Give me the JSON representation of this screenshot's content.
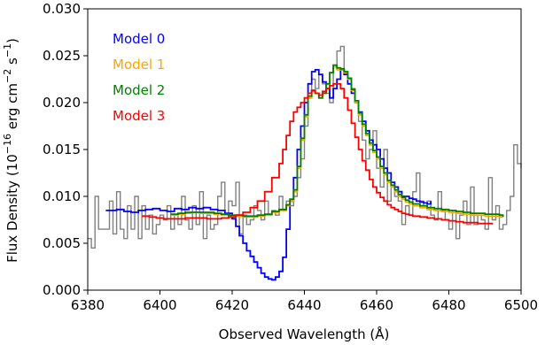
{
  "chart_data": {
    "type": "line",
    "xlabel": "Observed Wavelength (Å)",
    "ylabel": {
      "prefix": "Flux Density (10",
      "exp1": "−16",
      "mid": " erg cm",
      "exp2": "−2",
      "mid2": " s",
      "exp3": "−1",
      "suffix": ")"
    },
    "xlim": [
      6380,
      6500
    ],
    "ylim": [
      0.0,
      0.03
    ],
    "xticks": [
      6380,
      6400,
      6420,
      6440,
      6460,
      6480,
      6500
    ],
    "xtick_labels": [
      "6380",
      "6400",
      "6420",
      "6440",
      "6460",
      "6480",
      "6500"
    ],
    "yticks": [
      0.0,
      0.005,
      0.01,
      0.015,
      0.02,
      0.025,
      0.03
    ],
    "ytick_labels": [
      "0.000",
      "0.005",
      "0.010",
      "0.015",
      "0.020",
      "0.025",
      "0.030"
    ],
    "grid": false,
    "legend_placement": "top-left",
    "step": true,
    "data_color": "#808080",
    "data_x": [
      6380,
      6381,
      6382,
      6383,
      6384,
      6385,
      6386,
      6387,
      6388,
      6389,
      6390,
      6391,
      6392,
      6393,
      6394,
      6395,
      6396,
      6397,
      6398,
      6399,
      6400,
      6401,
      6402,
      6403,
      6404,
      6405,
      6406,
      6407,
      6408,
      6409,
      6410,
      6411,
      6412,
      6413,
      6414,
      6415,
      6416,
      6417,
      6418,
      6419,
      6420,
      6421,
      6422,
      6423,
      6424,
      6425,
      6426,
      6427,
      6428,
      6429,
      6430,
      6431,
      6432,
      6433,
      6434,
      6435,
      6436,
      6437,
      6438,
      6439,
      6440,
      6441,
      6442,
      6443,
      6444,
      6445,
      6446,
      6447,
      6448,
      6449,
      6450,
      6451,
      6452,
      6453,
      6454,
      6455,
      6456,
      6457,
      6458,
      6459,
      6460,
      6461,
      6462,
      6463,
      6464,
      6465,
      6466,
      6467,
      6468,
      6469,
      6470,
      6471,
      6472,
      6473,
      6474,
      6475,
      6476,
      6477,
      6478,
      6479,
      6480,
      6481,
      6482,
      6483,
      6484,
      6485,
      6486,
      6487,
      6488,
      6489,
      6490,
      6491,
      6492,
      6493,
      6494,
      6495,
      6496,
      6497,
      6498,
      6499,
      6500
    ],
    "data_y": [
      0.0055,
      0.0045,
      0.01,
      0.0065,
      0.0065,
      0.0065,
      0.0095,
      0.006,
      0.0105,
      0.0065,
      0.0055,
      0.009,
      0.0065,
      0.01,
      0.0055,
      0.009,
      0.0065,
      0.008,
      0.006,
      0.007,
      0.008,
      0.0075,
      0.009,
      0.0065,
      0.008,
      0.007,
      0.01,
      0.0075,
      0.0065,
      0.009,
      0.007,
      0.0105,
      0.0055,
      0.008,
      0.0065,
      0.007,
      0.01,
      0.0115,
      0.008,
      0.0095,
      0.009,
      0.0115,
      0.006,
      0.008,
      0.007,
      0.0075,
      0.009,
      0.0085,
      0.0075,
      0.0095,
      0.008,
      0.0085,
      0.008,
      0.01,
      0.0085,
      0.0095,
      0.009,
      0.01,
      0.012,
      0.014,
      0.0175,
      0.0205,
      0.0225,
      0.0215,
      0.023,
      0.022,
      0.021,
      0.02,
      0.024,
      0.0255,
      0.026,
      0.023,
      0.0225,
      0.0215,
      0.02,
      0.018,
      0.016,
      0.014,
      0.015,
      0.017,
      0.013,
      0.011,
      0.015,
      0.0095,
      0.011,
      0.01,
      0.0095,
      0.007,
      0.009,
      0.008,
      0.0105,
      0.0125,
      0.0095,
      0.009,
      0.0095,
      0.008,
      0.0075,
      0.0105,
      0.0085,
      0.0075,
      0.0065,
      0.0085,
      0.0055,
      0.008,
      0.0095,
      0.007,
      0.011,
      0.007,
      0.008,
      0.0075,
      0.0065,
      0.012,
      0.0075,
      0.009,
      0.0065,
      0.007,
      0.0085,
      0.01,
      0.0155,
      0.0135,
      0.013
    ],
    "series": [
      {
        "name": "Model 0",
        "color": "#0000ff",
        "x": [
          6385,
          6386,
          6388,
          6390,
          6392,
          6394,
          6396,
          6398,
          6400,
          6402,
          6404,
          6406,
          6408,
          6410,
          6412,
          6414,
          6416,
          6418,
          6420,
          6421,
          6422,
          6423,
          6424,
          6425,
          6426,
          6427,
          6428,
          6429,
          6430,
          6431,
          6432,
          6433,
          6434,
          6435,
          6436,
          6437,
          6438,
          6439,
          6440,
          6441,
          6442,
          6443,
          6444,
          6445,
          6446,
          6447,
          6448,
          6449,
          6450,
          6451,
          6452,
          6453,
          6454,
          6455,
          6456,
          6457,
          6458,
          6459,
          6460,
          6461,
          6462,
          6463,
          6464,
          6465,
          6466,
          6467,
          6468,
          6469,
          6470,
          6471,
          6472,
          6473,
          6474,
          6475
        ],
        "y": [
          0.0085,
          0.0085,
          0.0086,
          0.0084,
          0.0083,
          0.0085,
          0.0086,
          0.0087,
          0.0085,
          0.0084,
          0.0087,
          0.0086,
          0.0088,
          0.0087,
          0.0088,
          0.0086,
          0.0085,
          0.0082,
          0.0076,
          0.0068,
          0.0058,
          0.005,
          0.0042,
          0.0036,
          0.003,
          0.0024,
          0.0018,
          0.0014,
          0.0012,
          0.0011,
          0.0014,
          0.002,
          0.0035,
          0.0065,
          0.0095,
          0.012,
          0.015,
          0.0175,
          0.02,
          0.022,
          0.0233,
          0.0235,
          0.023,
          0.0222,
          0.0215,
          0.0205,
          0.0215,
          0.0225,
          0.0235,
          0.023,
          0.022,
          0.021,
          0.02,
          0.019,
          0.018,
          0.017,
          0.016,
          0.0155,
          0.015,
          0.014,
          0.013,
          0.0125,
          0.0115,
          0.011,
          0.0105,
          0.01,
          0.01,
          0.0098,
          0.0097,
          0.0095,
          0.0094,
          0.0093,
          0.0092,
          0.0095
        ]
      },
      {
        "name": "Model 1",
        "color": "#ffa500",
        "x": [
          6403,
          6405,
          6407,
          6409,
          6411,
          6413,
          6415,
          6417,
          6419,
          6421,
          6423,
          6425,
          6427,
          6429,
          6431,
          6433,
          6435,
          6436,
          6437,
          6438,
          6439,
          6440,
          6441,
          6442,
          6443,
          6444,
          6445,
          6446,
          6447,
          6448,
          6449,
          6450,
          6451,
          6452,
          6453,
          6454,
          6455,
          6456,
          6457,
          6458,
          6459,
          6460,
          6461,
          6462,
          6463,
          6464,
          6465,
          6466,
          6467,
          6468,
          6469,
          6470,
          6472,
          6474,
          6476,
          6478,
          6480,
          6482,
          6484,
          6486,
          6488,
          6490,
          6492,
          6494,
          6495
        ],
        "y": [
          0.008,
          0.0081,
          0.0082,
          0.0083,
          0.0082,
          0.0082,
          0.0081,
          0.008,
          0.0079,
          0.0079,
          0.0078,
          0.0078,
          0.0079,
          0.008,
          0.0083,
          0.0085,
          0.009,
          0.0095,
          0.0105,
          0.013,
          0.016,
          0.0185,
          0.0205,
          0.0212,
          0.021,
          0.0205,
          0.021,
          0.022,
          0.0232,
          0.0238,
          0.0235,
          0.0235,
          0.0232,
          0.0225,
          0.0213,
          0.02,
          0.0187,
          0.0175,
          0.0165,
          0.0155,
          0.0147,
          0.014,
          0.013,
          0.0123,
          0.0115,
          0.011,
          0.0105,
          0.01,
          0.0097,
          0.0094,
          0.0092,
          0.009,
          0.0088,
          0.0086,
          0.0085,
          0.0084,
          0.0083,
          0.0082,
          0.0081,
          0.008,
          0.008,
          0.0079,
          0.0079,
          0.0078,
          0.0078
        ]
      },
      {
        "name": "Model 2",
        "color": "#008000",
        "x": [
          6403,
          6405,
          6407,
          6409,
          6411,
          6413,
          6415,
          6417,
          6419,
          6421,
          6423,
          6425,
          6427,
          6429,
          6431,
          6433,
          6435,
          6436,
          6437,
          6438,
          6439,
          6440,
          6441,
          6442,
          6443,
          6444,
          6445,
          6446,
          6447,
          6448,
          6449,
          6450,
          6451,
          6452,
          6453,
          6454,
          6455,
          6456,
          6457,
          6458,
          6459,
          6460,
          6461,
          6462,
          6463,
          6464,
          6465,
          6466,
          6467,
          6468,
          6469,
          6470,
          6472,
          6474,
          6476,
          6478,
          6480,
          6482,
          6484,
          6486,
          6488,
          6490,
          6492,
          6494,
          6495
        ],
        "y": [
          0.0081,
          0.0082,
          0.0083,
          0.0083,
          0.0083,
          0.0083,
          0.0082,
          0.0081,
          0.008,
          0.008,
          0.0079,
          0.0079,
          0.008,
          0.0081,
          0.0084,
          0.0086,
          0.0091,
          0.0097,
          0.0107,
          0.0132,
          0.0162,
          0.0187,
          0.0207,
          0.0213,
          0.021,
          0.0205,
          0.021,
          0.022,
          0.0232,
          0.024,
          0.0237,
          0.0236,
          0.0233,
          0.0226,
          0.0214,
          0.0202,
          0.0189,
          0.0177,
          0.0167,
          0.0157,
          0.0149,
          0.0142,
          0.0132,
          0.0125,
          0.0117,
          0.0112,
          0.0107,
          0.0102,
          0.0099,
          0.0096,
          0.0094,
          0.0092,
          0.009,
          0.0088,
          0.0087,
          0.0086,
          0.0085,
          0.0084,
          0.0083,
          0.0082,
          0.0082,
          0.0081,
          0.0081,
          0.008,
          0.0078
        ]
      },
      {
        "name": "Model 3",
        "color": "#ff0000",
        "x": [
          6395,
          6397,
          6399,
          6401,
          6403,
          6405,
          6407,
          6409,
          6411,
          6413,
          6415,
          6417,
          6419,
          6421,
          6423,
          6425,
          6427,
          6429,
          6431,
          6433,
          6434,
          6435,
          6436,
          6437,
          6438,
          6439,
          6440,
          6441,
          6442,
          6443,
          6444,
          6445,
          6446,
          6447,
          6448,
          6449,
          6450,
          6451,
          6452,
          6453,
          6454,
          6455,
          6456,
          6457,
          6458,
          6459,
          6460,
          6461,
          6462,
          6463,
          6464,
          6465,
          6466,
          6467,
          6468,
          6469,
          6470,
          6472,
          6474,
          6476,
          6478,
          6480,
          6482,
          6484,
          6486,
          6488,
          6490,
          6492
        ],
        "y": [
          0.0079,
          0.0078,
          0.0077,
          0.0076,
          0.0076,
          0.0076,
          0.0077,
          0.0077,
          0.0077,
          0.0076,
          0.0076,
          0.0077,
          0.0078,
          0.008,
          0.0083,
          0.0088,
          0.0095,
          0.0105,
          0.012,
          0.0135,
          0.015,
          0.0165,
          0.018,
          0.019,
          0.0195,
          0.02,
          0.0205,
          0.021,
          0.0213,
          0.021,
          0.0208,
          0.0212,
          0.0215,
          0.0218,
          0.022,
          0.022,
          0.0215,
          0.0205,
          0.0192,
          0.0178,
          0.0163,
          0.015,
          0.0138,
          0.0128,
          0.0118,
          0.011,
          0.0104,
          0.0099,
          0.0095,
          0.0091,
          0.0088,
          0.0086,
          0.0084,
          0.0082,
          0.0081,
          0.008,
          0.0079,
          0.0078,
          0.0077,
          0.0076,
          0.0075,
          0.0074,
          0.0073,
          0.0072,
          0.0072,
          0.0071,
          0.0071,
          0.007
        ]
      }
    ]
  }
}
